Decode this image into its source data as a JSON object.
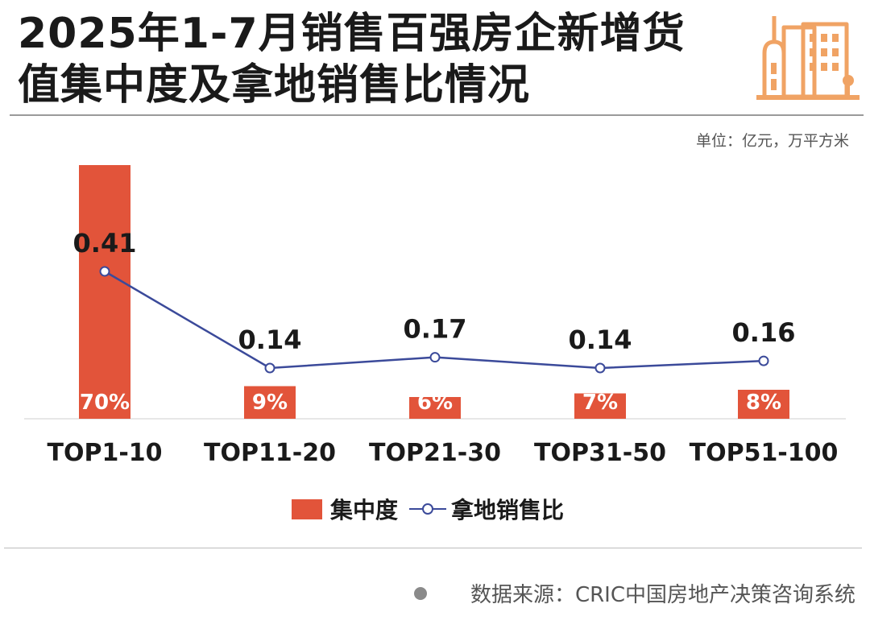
{
  "title": "2025年1-7月销售百强房企新增货值集中度及拿地销售比情况",
  "unit_note": "单位：亿元，万平方米",
  "source": "数据来源：CRIC中国房地产决策咨询系统",
  "colors": {
    "bar": "#e2543a",
    "line": "#3b4a9a",
    "icon": "#f0a364"
  },
  "icon": "buildings-icon",
  "chart_data": {
    "type": "bar",
    "categories": [
      "TOP1-10",
      "TOP11-20",
      "TOP21-30",
      "TOP31-50",
      "TOP51-100"
    ],
    "series": [
      {
        "name": "集中度",
        "type": "bar",
        "values": [
          70,
          9,
          6,
          7,
          8
        ],
        "labels": [
          "70%",
          "9%",
          "6%",
          "7%",
          "8%"
        ]
      },
      {
        "name": "拿地销售比",
        "type": "line",
        "values": [
          0.41,
          0.14,
          0.17,
          0.14,
          0.16
        ],
        "labels": [
          "0.41",
          "0.14",
          "0.17",
          "0.14",
          "0.16"
        ]
      }
    ],
    "legend": "bottom-center",
    "grid": false
  }
}
